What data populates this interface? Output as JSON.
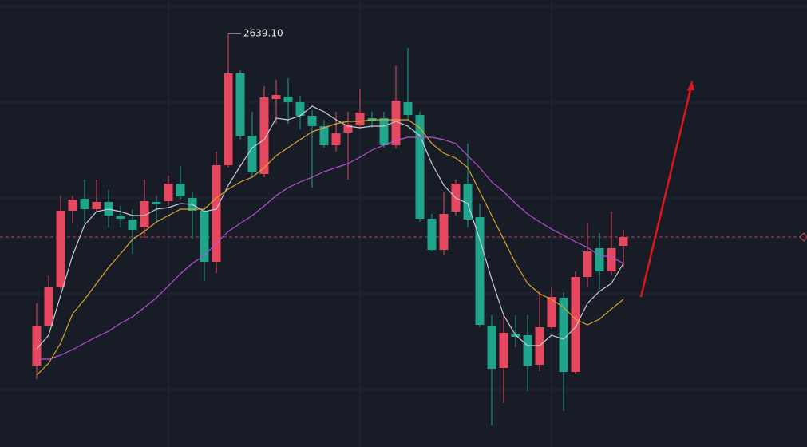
{
  "chart_data": {
    "type": "candlestick",
    "open": [
      2223.1,
      2273.1,
      2321.1,
      2417.1,
      2432.1,
      2419.1,
      2428.1,
      2411.1,
      2406.1,
      2396.1,
      2428.1,
      2429.1,
      2451.1,
      2433.1,
      2417.1,
      2353.1,
      2474.1,
      2589.1,
      2511.1,
      2463.1,
      2557.1,
      2560.1,
      2553.1,
      2536.1,
      2523.1,
      2499.1,
      2515.1,
      2524.1,
      2533.1,
      2533.1,
      2499.1,
      2553.1,
      2537.1,
      2407.1,
      2368.1,
      2416.1,
      2451.1,
      2409.1,
      2273.1,
      2220.1,
      2263.1,
      2261.1,
      2224.1,
      2271.1,
      2308.1,
      2215.1,
      2334.1,
      2370.1,
      2341.1,
      2373.1
    ],
    "high": [
      2301.1,
      2336.1,
      2436.1,
      2436.1,
      2456.1,
      2456.1,
      2443.1,
      2423.1,
      2419.1,
      2456.1,
      2436.1,
      2461.1,
      2473.1,
      2441.1,
      2423.1,
      2491.1,
      2639.1,
      2593.1,
      2541.1,
      2573.1,
      2581.1,
      2583.1,
      2561.1,
      2543.1,
      2531.1,
      2541.1,
      2541.1,
      2569.1,
      2541.1,
      2541.1,
      2599.1,
      2621.1,
      2541.1,
      2413.1,
      2441.1,
      2456.1,
      2501.1,
      2426.1,
      2286.1,
      2286.1,
      2286.1,
      2286.1,
      2316.1,
      2321.1,
      2315.1,
      2341.1,
      2401.1,
      2389.1,
      2416.1,
      2393.1
    ],
    "low": [
      2206.1,
      2271.1,
      2319.1,
      2401.1,
      2401.1,
      2416.1,
      2396.1,
      2396.1,
      2363.1,
      2383.1,
      2401.1,
      2423.1,
      2431.1,
      2381.1,
      2329.1,
      2339.1,
      2471.1,
      2506.1,
      2459.1,
      2459.1,
      2526.1,
      2526.1,
      2519.1,
      2446.1,
      2496.1,
      2491.1,
      2456.1,
      2519.1,
      2521.1,
      2496.1,
      2495.1,
      2531.1,
      2403.1,
      2366.1,
      2361.1,
      2411.1,
      2396.1,
      2271.1,
      2148.1,
      2176.1,
      2246.1,
      2191.1,
      2216.1,
      2269.1,
      2166.1,
      2213.1,
      2321.1,
      2319.1,
      2336.1,
      2346.1
    ],
    "close": [
      2273.1,
      2321.1,
      2417.1,
      2431.1,
      2419.1,
      2428.1,
      2411.1,
      2407.1,
      2393.1,
      2429.1,
      2425.1,
      2451.1,
      2435.1,
      2417.1,
      2353.1,
      2474.1,
      2589.1,
      2511.1,
      2465.1,
      2559.1,
      2562.1,
      2553.1,
      2536.1,
      2523.1,
      2499.1,
      2514.1,
      2525.1,
      2540.1,
      2529.1,
      2499.1,
      2555.1,
      2537.1,
      2407.1,
      2368.1,
      2413.1,
      2451.1,
      2406.1,
      2274.1,
      2219.1,
      2264.1,
      2259.1,
      2223.1,
      2271.1,
      2309.1,
      2215.1,
      2334.1,
      2366.1,
      2341.1,
      2370.1,
      2384.1
    ],
    "up_color": "#e5485f",
    "down_color": "#1ea58b",
    "series": [
      {
        "color": "#c9ccd3",
        "values": [
          2244.1,
          2261.1,
          2311.1,
          2361.1,
          2399.1,
          2416.1,
          2419.1,
          2416.1,
          2411.1,
          2411.1,
          2419.1,
          2421.1,
          2426.1,
          2425.1,
          2416.1,
          2419.1,
          2449.1,
          2473.1,
          2496.1,
          2506.1,
          2533.1,
          2531.1,
          2536.1,
          2548.1,
          2541.1,
          2531.1,
          2523.1,
          2521.1,
          2523.1,
          2523.1,
          2529.1,
          2523.1,
          2511.1,
          2476.1,
          2449.1,
          2433.1,
          2426.1,
          2381.1,
          2331.1,
          2286.1,
          2261.1,
          2248.1,
          2248.1,
          2261.1,
          2256.1,
          2271.1,
          2301.1,
          2316.1,
          2326.1,
          2351.1
        ]
      },
      {
        "color": "#d9a62a",
        "values": [
          2211.1,
          2226.1,
          2251.1,
          2288.1,
          2306.1,
          2326.1,
          2346.1,
          2363.1,
          2381.1,
          2391.1,
          2403.1,
          2411.1,
          2419.1,
          2419.1,
          2419.1,
          2433.1,
          2444.1,
          2453.1,
          2459.1,
          2471.1,
          2486.1,
          2496.1,
          2506.1,
          2516.1,
          2521.1,
          2526.1,
          2529.1,
          2529.1,
          2531.1,
          2531.1,
          2531.1,
          2531.1,
          2521.1,
          2501.1,
          2489.1,
          2483.1,
          2471.1,
          2441.1,
          2411.1,
          2381.1,
          2351.1,
          2326.1,
          2313.1,
          2306.1,
          2296.1,
          2281.1,
          2274.1,
          2281.1,
          2294.1,
          2306.1
        ]
      },
      {
        "color": "#b84fd1",
        "values": [
          2231.1,
          2231.1,
          2236.1,
          2243.1,
          2251.1,
          2259.1,
          2266.1,
          2276.1,
          2284.1,
          2296.1,
          2308.1,
          2323.1,
          2338.1,
          2351.1,
          2361.1,
          2376.1,
          2391.1,
          2401.1,
          2411.1,
          2423.1,
          2436.1,
          2446.1,
          2453.1,
          2459.1,
          2466.1,
          2471.1,
          2476.1,
          2484.1,
          2493.1,
          2499.1,
          2505.1,
          2509.1,
          2509.1,
          2509.1,
          2506.1,
          2501.1,
          2486.1,
          2471.1,
          2453.1,
          2441.1,
          2426.1,
          2413.1,
          2403.1,
          2394.1,
          2386.1,
          2378.1,
          2371.1,
          2361.1,
          2359.1,
          2351.1
        ]
      }
    ],
    "price_line": 2384.1,
    "high_label": {
      "value": 2639.1,
      "label": "2639.10"
    },
    "ylim": [
      2121.1,
      2681.1
    ]
  }
}
